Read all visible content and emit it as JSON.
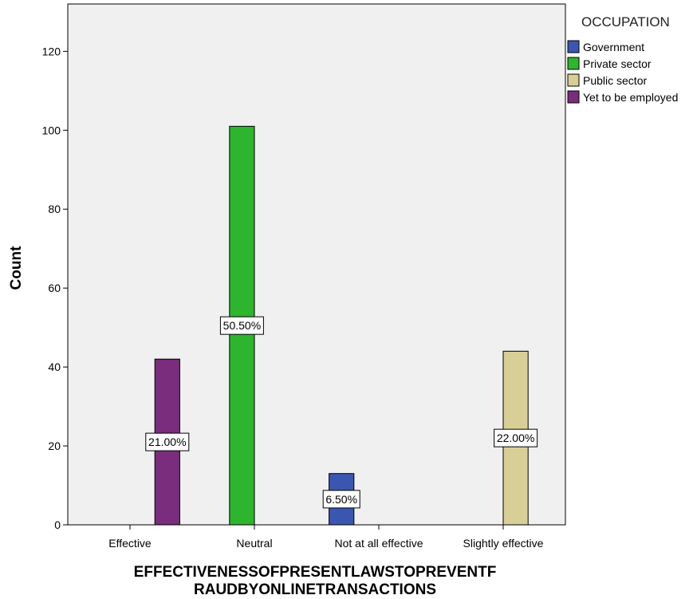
{
  "chart_data": {
    "type": "bar",
    "xlabel_lines": [
      "EFFECTIVENESSOFPRESENTLAWSTOPREVENTF",
      "RAUDBYONLINETRANSACTIONS"
    ],
    "ylabel": "Count",
    "ylim": [
      0,
      132
    ],
    "yticks": [
      0,
      20,
      40,
      60,
      80,
      100,
      120
    ],
    "categories": [
      "Effective",
      "Neutral",
      "Not at all effective",
      "Slightly effective"
    ],
    "legend": {
      "title": "OCCUPATION",
      "placement": "right",
      "entries": [
        {
          "name": "Government",
          "color": "#3a56b0"
        },
        {
          "name": "Private sector",
          "color": "#2db52d"
        },
        {
          "name": "Public sector",
          "color": "#d8cf96"
        },
        {
          "name": "Yet to be employed",
          "color": "#7a2c7d"
        }
      ]
    },
    "series": [
      {
        "name": "Government",
        "values": [
          null,
          null,
          13,
          null
        ],
        "labels": [
          null,
          null,
          "6.50%",
          null
        ]
      },
      {
        "name": "Private sector",
        "values": [
          null,
          101,
          null,
          null
        ],
        "labels": [
          null,
          "50.50%",
          null,
          null
        ]
      },
      {
        "name": "Public sector",
        "values": [
          null,
          null,
          null,
          44
        ],
        "labels": [
          null,
          null,
          null,
          "22.00%"
        ]
      },
      {
        "name": "Yet to be employed",
        "values": [
          42,
          null,
          null,
          null
        ],
        "labels": [
          "21.00%",
          null,
          null,
          null
        ]
      }
    ],
    "grid": false,
    "plot_background": "#f0f0f0"
  }
}
